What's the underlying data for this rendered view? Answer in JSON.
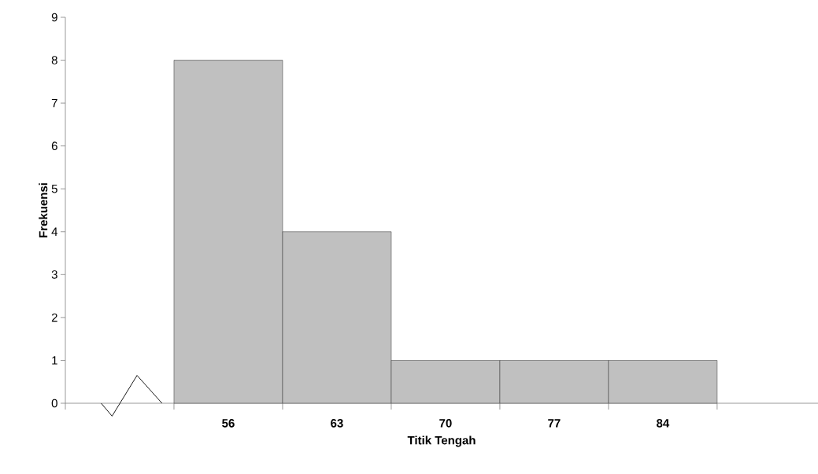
{
  "chart_data": {
    "type": "bar",
    "xlabel": "Titik Tengah",
    "ylabel": "Frekuensi",
    "x": [
      56,
      63,
      70,
      77,
      84
    ],
    "values": [
      8,
      4,
      1,
      1,
      1
    ],
    "color": "#c0c0c0",
    "xlim": [
      45.5,
      94
    ],
    "xticks": [
      56,
      63,
      70,
      77,
      84
    ],
    "ylim": [
      0,
      9
    ],
    "yticks": [
      0,
      1,
      2,
      3,
      4,
      5,
      6,
      7,
      8,
      9
    ],
    "grid": false
  }
}
